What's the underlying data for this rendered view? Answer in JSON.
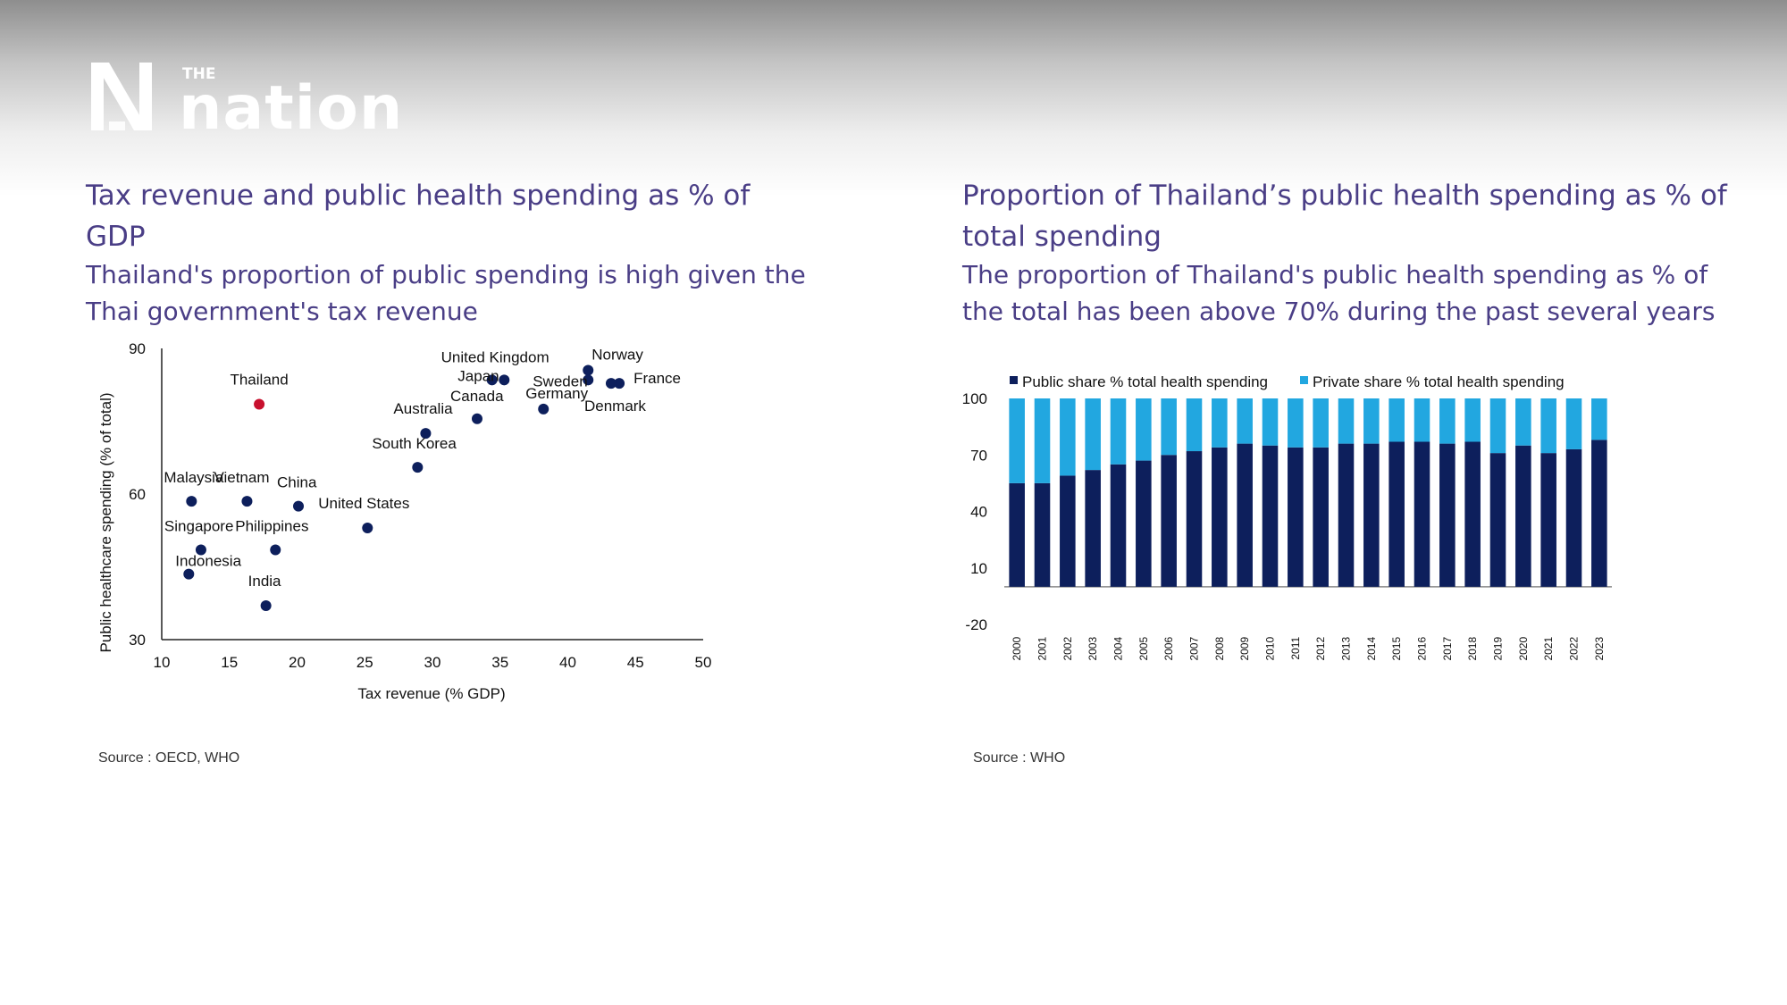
{
  "brand": {
    "small": "THE",
    "name": "nation"
  },
  "left": {
    "title": "Tax revenue and public health spending as % of GDP",
    "subtitle": "Thailand's proportion of public spending is high given the Thai government's tax revenue",
    "source": "Source : OECD, WHO"
  },
  "right": {
    "title": "Proportion of Thailand’s public health spending as % of total spending",
    "subtitle": "The proportion of Thailand's public health spending as % of the total has been above 70% during the past several years",
    "source": "Source : WHO"
  },
  "colors": {
    "title": "#4a3e86",
    "navy": "#0d1f5c",
    "light_blue": "#22a7e0",
    "highlight": "#c8102e"
  },
  "chart_data": [
    {
      "type": "scatter",
      "xlabel": "Tax revenue (% GDP)",
      "ylabel": "Public healthcare spending (% of total)",
      "xlim": [
        10,
        50
      ],
      "ylim": [
        30,
        90
      ],
      "xticks": [
        10,
        15,
        20,
        25,
        30,
        35,
        40,
        45,
        50
      ],
      "yticks": [
        30,
        60,
        90
      ],
      "highlight": "Thailand",
      "points": [
        {
          "name": "Thailand",
          "x": 17.2,
          "y": 78.5
        },
        {
          "name": "United Kingdom",
          "x": 34.4,
          "y": 83.5
        },
        {
          "name": "Japan",
          "x": 35.3,
          "y": 83.5
        },
        {
          "name": "Norway",
          "x": 41.5,
          "y": 85.5
        },
        {
          "name": "Sweden",
          "x": 41.5,
          "y": 83.5
        },
        {
          "name": "France",
          "x": 43.8,
          "y": 82.8
        },
        {
          "name": "Denmark",
          "x": 43.2,
          "y": 82.8
        },
        {
          "name": "Germany",
          "x": 38.2,
          "y": 77.5
        },
        {
          "name": "Canada",
          "x": 33.3,
          "y": 75.5
        },
        {
          "name": "Australia",
          "x": 29.5,
          "y": 72.5
        },
        {
          "name": "South Korea",
          "x": 28.9,
          "y": 65.5
        },
        {
          "name": "Malaysia",
          "x": 12.2,
          "y": 58.5
        },
        {
          "name": "Vietnam",
          "x": 16.3,
          "y": 58.5
        },
        {
          "name": "China",
          "x": 20.1,
          "y": 57.5
        },
        {
          "name": "United States",
          "x": 25.2,
          "y": 53.0
        },
        {
          "name": "Singapore",
          "x": 12.9,
          "y": 48.5
        },
        {
          "name": "Philippines",
          "x": 18.4,
          "y": 48.5
        },
        {
          "name": "Indonesia",
          "x": 12.0,
          "y": 43.5
        },
        {
          "name": "India",
          "x": 17.7,
          "y": 37.0
        }
      ]
    },
    {
      "type": "bar",
      "stacked": true,
      "categories": [
        "2000",
        "2001",
        "2002",
        "2003",
        "2004",
        "2005",
        "2006",
        "2007",
        "2008",
        "2009",
        "2010",
        "2011",
        "2012",
        "2013",
        "2014",
        "2015",
        "2016",
        "2017",
        "2018",
        "2019",
        "2020",
        "2021",
        "2022",
        "2023"
      ],
      "ylim": [
        -20,
        100
      ],
      "yticks": [
        -20,
        10,
        40,
        70,
        100
      ],
      "legend": "top",
      "series": [
        {
          "name": "Public share % total health spending",
          "color": "#0d1f5c",
          "values": [
            55,
            55,
            59,
            62,
            65,
            67,
            70,
            72,
            74,
            76,
            75,
            74,
            74,
            76,
            76,
            77,
            77,
            76,
            77,
            71,
            75,
            71,
            73,
            78
          ]
        },
        {
          "name": "Private share % total health spending",
          "color": "#22a7e0",
          "values": [
            45,
            45,
            41,
            38,
            35,
            33,
            30,
            28,
            26,
            24,
            25,
            26,
            26,
            24,
            24,
            23,
            23,
            24,
            23,
            29,
            25,
            29,
            27,
            22
          ]
        }
      ]
    }
  ]
}
